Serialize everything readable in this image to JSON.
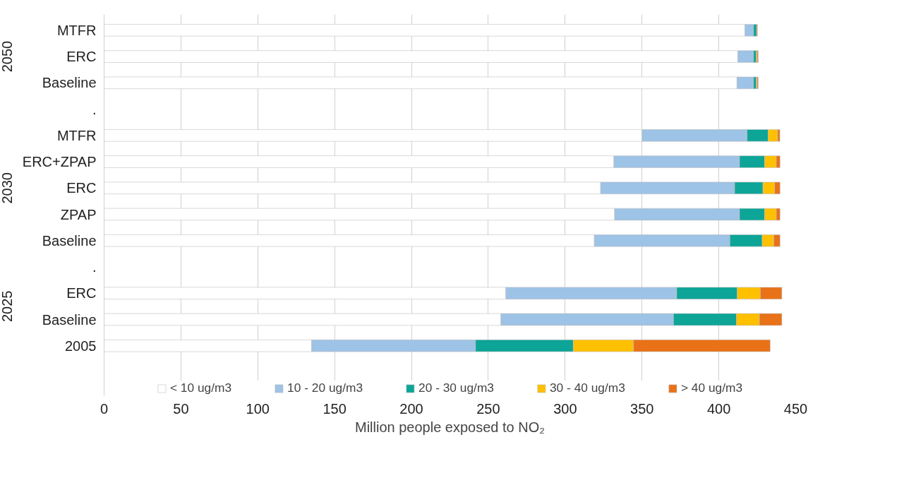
{
  "chart_data": {
    "type": "bar",
    "orientation": "horizontal",
    "stacked": true,
    "xlabel": "Million people exposed to NO₂",
    "categories": [
      "MTFR",
      "ERC",
      "Baseline",
      ".",
      "MTFR",
      "ERC+ZPAP",
      "ERC",
      "ZPAP",
      "Baseline",
      ".",
      "ERC",
      "Baseline",
      "2005"
    ],
    "annotations": [
      "2050",
      "2030",
      "2025"
    ],
    "series": [
      {
        "name": "< 10 ug/m3",
        "color": "#ffffff",
        "values": [
          417,
          412.4,
          411.8,
          null,
          350,
          331.7,
          323.1,
          332.2,
          319,
          null,
          261.4,
          258.2,
          135
        ]
      },
      {
        "name": "10 - 20 ug/m3",
        "color": "#9dc3e6",
        "values": [
          5.6,
          10.2,
          10.8,
          null,
          68.4,
          81.8,
          87.2,
          81.3,
          88.2,
          null,
          111.2,
          112.3,
          106.7
        ]
      },
      {
        "name": "20 - 30 ug/m3",
        "color": "#0ca597",
        "values": [
          2.0,
          1.8,
          1.8,
          null,
          13.7,
          16.3,
          18.4,
          16.3,
          21,
          null,
          39.4,
          41,
          63.6
        ]
      },
      {
        "name": "30 - 40 ug/m3",
        "color": "#ffc000",
        "values": [
          null,
          0.6,
          0.6,
          null,
          6.2,
          7.6,
          7.6,
          7.6,
          7.6,
          null,
          15,
          14.9,
          39.2
        ]
      },
      {
        "name": "> 40 ug/m3",
        "color": "#e97118",
        "values": [
          0.5,
          0.6,
          0.6,
          null,
          1.4,
          2.4,
          3.5,
          2.4,
          4,
          null,
          14,
          14.6,
          88.9
        ]
      }
    ],
    "xlim": [
      0,
      450
    ],
    "xticks": [
      0,
      50,
      100,
      150,
      200,
      250,
      300,
      350,
      400,
      450
    ],
    "grid": "x",
    "legend": "bottom"
  }
}
